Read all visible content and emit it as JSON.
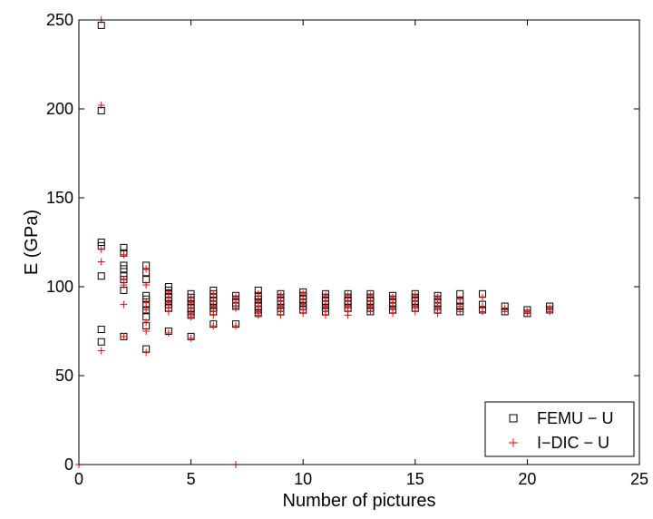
{
  "chart_data": {
    "type": "scatter",
    "title": "",
    "xlabel": "Number of pictures",
    "ylabel": "E (GPa)",
    "xlim": [
      0,
      25
    ],
    "ylim": [
      0,
      250
    ],
    "xticks": [
      "0",
      "5",
      "10",
      "15",
      "20",
      "25"
    ],
    "yticks": [
      "0",
      "50",
      "100",
      "150",
      "200",
      "250"
    ],
    "grid": false,
    "legend_position": "bottom-right",
    "series": [
      {
        "name": "FEMU − U",
        "marker": "square",
        "color": "#000000",
        "points": [
          [
            1,
            247
          ],
          [
            1,
            199
          ],
          [
            1,
            125
          ],
          [
            1,
            123
          ],
          [
            1,
            106
          ],
          [
            1,
            76
          ],
          [
            1,
            69
          ],
          [
            2,
            122
          ],
          [
            2,
            119
          ],
          [
            2,
            112
          ],
          [
            2,
            110
          ],
          [
            2,
            106
          ],
          [
            2,
            104
          ],
          [
            2,
            98
          ],
          [
            2,
            72
          ],
          [
            3,
            112
          ],
          [
            3,
            108
          ],
          [
            3,
            104
          ],
          [
            3,
            95
          ],
          [
            3,
            93
          ],
          [
            3,
            90
          ],
          [
            3,
            87
          ],
          [
            3,
            83
          ],
          [
            3,
            78
          ],
          [
            3,
            65
          ],
          [
            4,
            100
          ],
          [
            4,
            98
          ],
          [
            4,
            96
          ],
          [
            4,
            94
          ],
          [
            4,
            92
          ],
          [
            4,
            90
          ],
          [
            4,
            88
          ],
          [
            4,
            75
          ],
          [
            5,
            96
          ],
          [
            5,
            94
          ],
          [
            5,
            92
          ],
          [
            5,
            90
          ],
          [
            5,
            88
          ],
          [
            5,
            86
          ],
          [
            5,
            84
          ],
          [
            5,
            72
          ],
          [
            6,
            98
          ],
          [
            6,
            96
          ],
          [
            6,
            94
          ],
          [
            6,
            92
          ],
          [
            6,
            90
          ],
          [
            6,
            88
          ],
          [
            6,
            86
          ],
          [
            6,
            79
          ],
          [
            7,
            95
          ],
          [
            7,
            93
          ],
          [
            7,
            91
          ],
          [
            7,
            89
          ],
          [
            7,
            79
          ],
          [
            8,
            98
          ],
          [
            8,
            95
          ],
          [
            8,
            93
          ],
          [
            8,
            91
          ],
          [
            8,
            89
          ],
          [
            8,
            87
          ],
          [
            8,
            85
          ],
          [
            9,
            96
          ],
          [
            9,
            94
          ],
          [
            9,
            92
          ],
          [
            9,
            90
          ],
          [
            9,
            88
          ],
          [
            9,
            86
          ],
          [
            10,
            97
          ],
          [
            10,
            95
          ],
          [
            10,
            93
          ],
          [
            10,
            91
          ],
          [
            10,
            89
          ],
          [
            10,
            87
          ],
          [
            11,
            96
          ],
          [
            11,
            94
          ],
          [
            11,
            92
          ],
          [
            11,
            90
          ],
          [
            11,
            88
          ],
          [
            11,
            86
          ],
          [
            12,
            96
          ],
          [
            12,
            94
          ],
          [
            12,
            92
          ],
          [
            12,
            90
          ],
          [
            12,
            88
          ],
          [
            13,
            96
          ],
          [
            13,
            94
          ],
          [
            13,
            92
          ],
          [
            13,
            90
          ],
          [
            13,
            88
          ],
          [
            13,
            86
          ],
          [
            14,
            95
          ],
          [
            14,
            93
          ],
          [
            14,
            91
          ],
          [
            14,
            89
          ],
          [
            14,
            87
          ],
          [
            15,
            96
          ],
          [
            15,
            94
          ],
          [
            15,
            92
          ],
          [
            15,
            90
          ],
          [
            15,
            88
          ],
          [
            16,
            95
          ],
          [
            16,
            93
          ],
          [
            16,
            91
          ],
          [
            16,
            89
          ],
          [
            16,
            87
          ],
          [
            17,
            96
          ],
          [
            17,
            92
          ],
          [
            17,
            89
          ],
          [
            17,
            86
          ],
          [
            18,
            96
          ],
          [
            18,
            90
          ],
          [
            18,
            87
          ],
          [
            19,
            89
          ],
          [
            19,
            86
          ],
          [
            20,
            87
          ],
          [
            20,
            85
          ],
          [
            21,
            89
          ],
          [
            21,
            87
          ]
        ]
      },
      {
        "name": "I−DIC − U",
        "marker": "plus",
        "color": "#ff0000",
        "points": [
          [
            0,
            0
          ],
          [
            1,
            250
          ],
          [
            1,
            202
          ],
          [
            1,
            121
          ],
          [
            1,
            114
          ],
          [
            1,
            64
          ],
          [
            2,
            118
          ],
          [
            2,
            104
          ],
          [
            2,
            101
          ],
          [
            2,
            90
          ],
          [
            2,
            72
          ],
          [
            3,
            110
          ],
          [
            3,
            101
          ],
          [
            3,
            91
          ],
          [
            3,
            87
          ],
          [
            3,
            80
          ],
          [
            3,
            75
          ],
          [
            3,
            63
          ],
          [
            4,
            97
          ],
          [
            4,
            94
          ],
          [
            4,
            91
          ],
          [
            4,
            88
          ],
          [
            4,
            86
          ],
          [
            4,
            74
          ],
          [
            5,
            94
          ],
          [
            5,
            91
          ],
          [
            5,
            88
          ],
          [
            5,
            85
          ],
          [
            5,
            83
          ],
          [
            5,
            71
          ],
          [
            6,
            96
          ],
          [
            6,
            92
          ],
          [
            6,
            89
          ],
          [
            6,
            86
          ],
          [
            6,
            84
          ],
          [
            6,
            78
          ],
          [
            7,
            94
          ],
          [
            7,
            91
          ],
          [
            7,
            88
          ],
          [
            7,
            78
          ],
          [
            7,
            0
          ],
          [
            8,
            96
          ],
          [
            8,
            92
          ],
          [
            8,
            89
          ],
          [
            8,
            86
          ],
          [
            8,
            84
          ],
          [
            9,
            95
          ],
          [
            9,
            92
          ],
          [
            9,
            89
          ],
          [
            9,
            86
          ],
          [
            9,
            84
          ],
          [
            10,
            96
          ],
          [
            10,
            93
          ],
          [
            10,
            90
          ],
          [
            10,
            87
          ],
          [
            10,
            85
          ],
          [
            11,
            95
          ],
          [
            11,
            92
          ],
          [
            11,
            89
          ],
          [
            11,
            86
          ],
          [
            11,
            84
          ],
          [
            12,
            95
          ],
          [
            12,
            92
          ],
          [
            12,
            89
          ],
          [
            12,
            86
          ],
          [
            12,
            84
          ],
          [
            13,
            95
          ],
          [
            13,
            92
          ],
          [
            13,
            89
          ],
          [
            13,
            86
          ],
          [
            14,
            94
          ],
          [
            14,
            91
          ],
          [
            14,
            88
          ],
          [
            14,
            85
          ],
          [
            15,
            95
          ],
          [
            15,
            92
          ],
          [
            15,
            89
          ],
          [
            15,
            86
          ],
          [
            16,
            94
          ],
          [
            16,
            91
          ],
          [
            16,
            88
          ],
          [
            16,
            85
          ],
          [
            17,
            93
          ],
          [
            17,
            89
          ],
          [
            17,
            86
          ],
          [
            18,
            94
          ],
          [
            18,
            89
          ],
          [
            18,
            86
          ],
          [
            19,
            88
          ],
          [
            19,
            86
          ],
          [
            20,
            86
          ],
          [
            20,
            85
          ],
          [
            21,
            88
          ],
          [
            21,
            86
          ]
        ]
      }
    ]
  }
}
